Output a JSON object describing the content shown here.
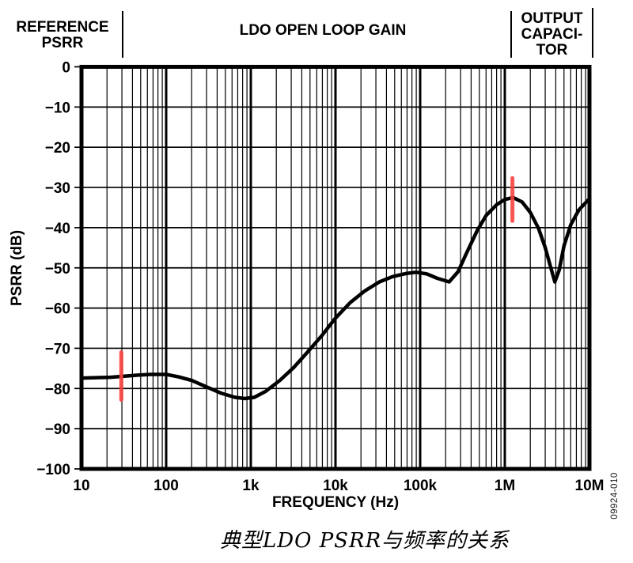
{
  "annotations": {
    "reference_psrr": {
      "line1": "REFERENCE",
      "line2": "PSRR"
    },
    "ldo_open_loop_gain": "LDO OPEN LOOP GAIN",
    "output_capacitor": {
      "line1": "OUTPUT",
      "line2": "CAPACI-",
      "line3": "TOR"
    }
  },
  "axes": {
    "y_label": "PSRR (dB)",
    "x_label": "FREQUENCY (Hz)",
    "y_ticks": [
      "0",
      "−10",
      "−20",
      "−30",
      "−40",
      "−50",
      "−60",
      "−70",
      "−80",
      "−90",
      "−100"
    ],
    "x_ticks": [
      "10",
      "100",
      "1k",
      "10k",
      "100k",
      "1M",
      "10M"
    ]
  },
  "figure_number": "09924-010",
  "caption": "典型LDO PSRR与频率的关系",
  "colors": {
    "curve": "#000000",
    "grid": "#000000",
    "marker": "#f8433f",
    "background": "#ffffff"
  },
  "chart_data": {
    "type": "line",
    "title": "",
    "xlabel": "FREQUENCY (Hz)",
    "ylabel": "PSRR (dB)",
    "x_scale": "log",
    "xlim": [
      10,
      10000000
    ],
    "ylim": [
      -100,
      0
    ],
    "y_tick_step": 10,
    "grid": "log-x major+minor verticals; horizontal line every 10 dB",
    "regions": [
      {
        "label": "REFERENCE PSRR",
        "x_range": [
          10,
          30
        ]
      },
      {
        "label": "LDO OPEN LOOP GAIN",
        "x_range": [
          30,
          1230000
        ]
      },
      {
        "label": "OUTPUT CAPACITOR",
        "x_range": [
          1230000,
          10000000
        ]
      }
    ],
    "series": [
      {
        "name": "PSRR",
        "color": "#000000",
        "points": [
          [
            10,
            -77.4
          ],
          [
            15,
            -77.3
          ],
          [
            22,
            -77.2
          ],
          [
            30,
            -77.0
          ],
          [
            45,
            -76.7
          ],
          [
            65,
            -76.5
          ],
          [
            100,
            -76.5
          ],
          [
            140,
            -77.1
          ],
          [
            200,
            -78.0
          ],
          [
            300,
            -79.6
          ],
          [
            450,
            -81.2
          ],
          [
            650,
            -82.2
          ],
          [
            850,
            -82.5
          ],
          [
            1100,
            -82.2
          ],
          [
            1500,
            -80.7
          ],
          [
            2200,
            -78.0
          ],
          [
            3200,
            -74.8
          ],
          [
            4700,
            -70.9
          ],
          [
            6800,
            -67.0
          ],
          [
            10000,
            -62.5
          ],
          [
            15000,
            -58.6
          ],
          [
            22000,
            -55.8
          ],
          [
            33000,
            -53.5
          ],
          [
            47000,
            -52.2
          ],
          [
            68000,
            -51.4
          ],
          [
            90000,
            -51.1
          ],
          [
            120000,
            -51.5
          ],
          [
            160000,
            -52.6
          ],
          [
            220000,
            -53.5
          ],
          [
            280000,
            -51.0
          ],
          [
            350000,
            -46.5
          ],
          [
            470000,
            -40.8
          ],
          [
            600000,
            -37.0
          ],
          [
            800000,
            -34.3
          ],
          [
            1000000,
            -33.0
          ],
          [
            1250000,
            -32.5
          ],
          [
            1600000,
            -33.6
          ],
          [
            2000000,
            -36.2
          ],
          [
            2500000,
            -40.2
          ],
          [
            3000000,
            -45.0
          ],
          [
            3500000,
            -50.0
          ],
          [
            3900000,
            -53.5
          ],
          [
            4400000,
            -50.5
          ],
          [
            5000000,
            -44.5
          ],
          [
            6000000,
            -39.3
          ],
          [
            7500000,
            -35.6
          ],
          [
            9000000,
            -33.8
          ],
          [
            10000000,
            -32.8
          ]
        ]
      }
    ],
    "markers": [
      {
        "name": "cursor-low-frequency",
        "color": "#f8433f",
        "freq": 29.5,
        "db_range": [
          -83.3,
          -70.5
        ]
      },
      {
        "name": "cursor-high-frequency",
        "color": "#f8433f",
        "freq": 1230000,
        "db_range": [
          -38.8,
          -27.2
        ]
      }
    ]
  }
}
